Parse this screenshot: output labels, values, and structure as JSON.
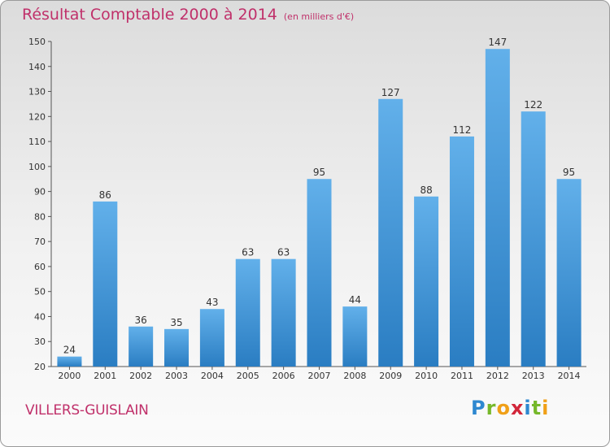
{
  "header": {
    "title": "Résultat Comptable 2000 à 2014",
    "unit_note": "(en milliers d'€)"
  },
  "footer": {
    "city": "VILLERS-GUISLAIN",
    "logo_text": "Proxiti"
  },
  "colors": {
    "title": "#c0306a",
    "bar_top": "#62b0ea",
    "bar_bottom": "#2a7dc2",
    "axis": "#555555"
  },
  "chart_data": {
    "type": "bar",
    "title": "Résultat Comptable 2000 à 2014",
    "subtitle": "(en milliers d'€)",
    "xlabel": "",
    "ylabel": "",
    "categories": [
      "2000",
      "2001",
      "2002",
      "2003",
      "2004",
      "2005",
      "2006",
      "2007",
      "2008",
      "2009",
      "2010",
      "2011",
      "2012",
      "2013",
      "2014"
    ],
    "values": [
      24,
      86,
      36,
      35,
      43,
      63,
      63,
      95,
      44,
      127,
      88,
      112,
      147,
      122,
      95
    ],
    "ylim": [
      20,
      150
    ],
    "yticks": [
      20,
      30,
      40,
      50,
      60,
      70,
      80,
      90,
      100,
      110,
      120,
      130,
      140,
      150
    ],
    "grid": false,
    "legend": "none"
  }
}
